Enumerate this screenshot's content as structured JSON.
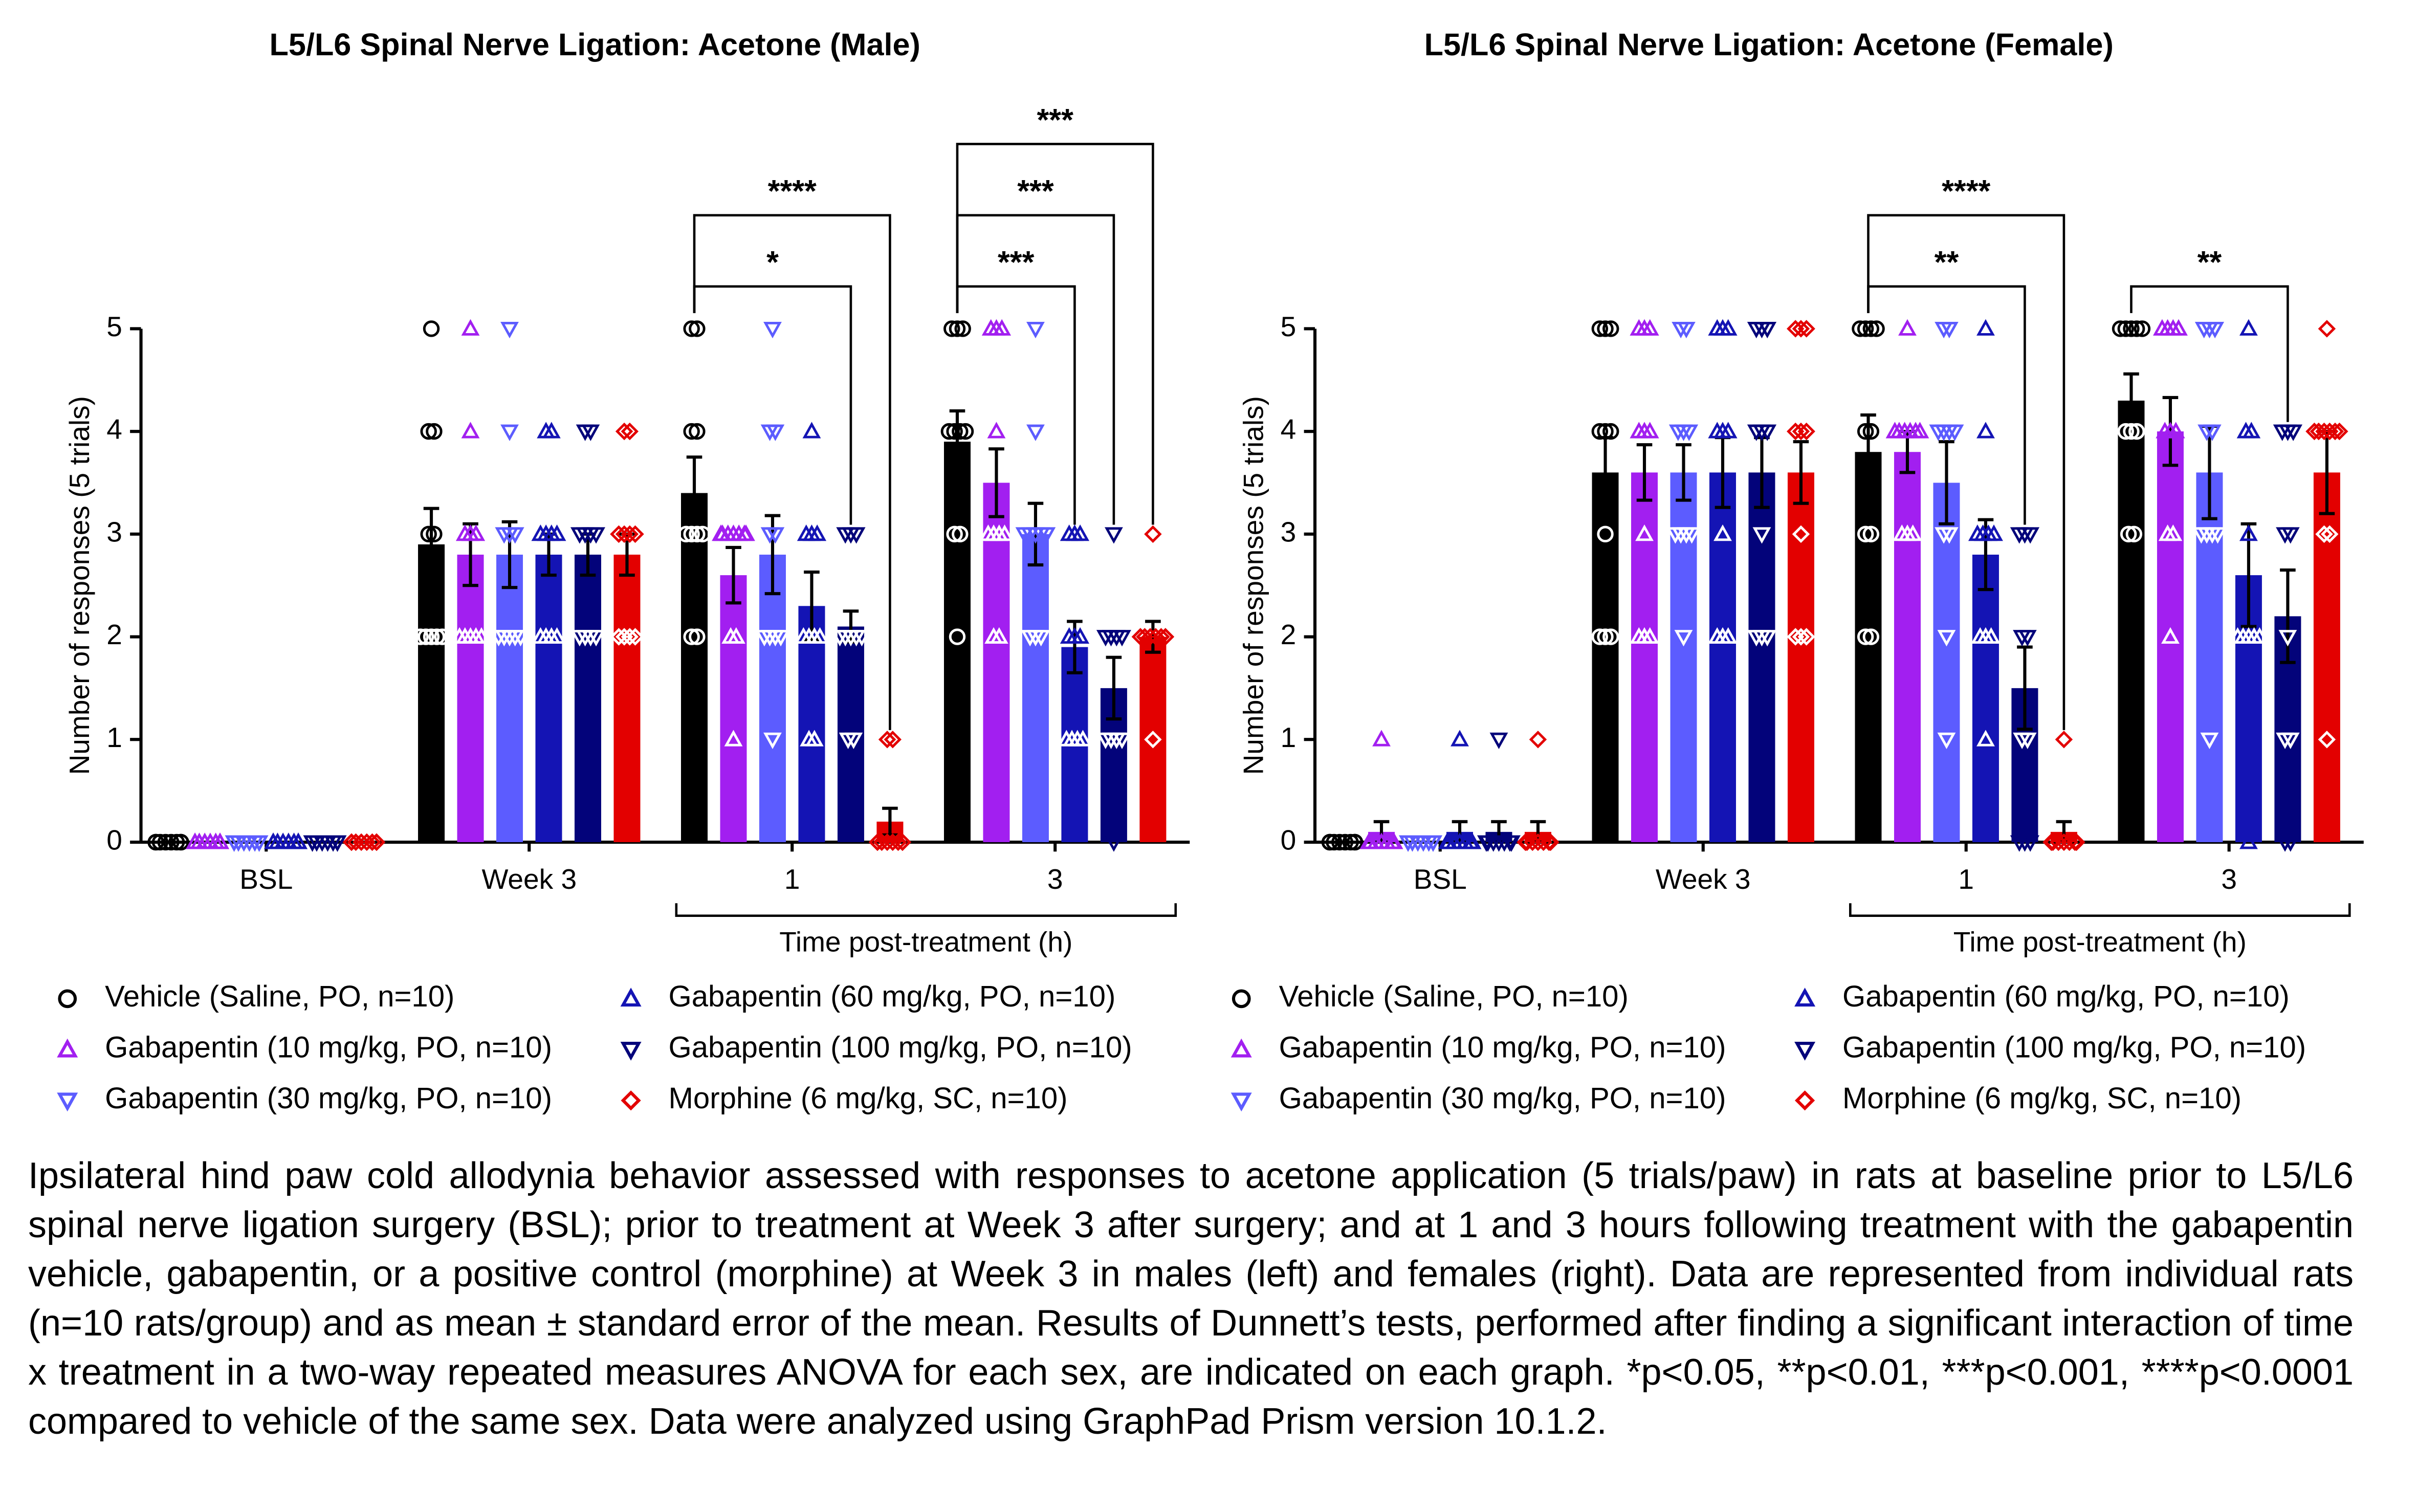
{
  "chart_data": [
    {
      "type": "bar",
      "title": "L5/L6 Spinal Nerve Ligation: Acetone (Male)",
      "y_label": "Number of responses (5 trials)",
      "categories": [
        "BSL",
        "Week 3",
        "1",
        "3"
      ],
      "x_group": {
        "label": "Time post-treatment (h)",
        "from": "1",
        "to": "3"
      },
      "ylim": [
        0,
        5
      ],
      "yticks": [
        0,
        1,
        2,
        3,
        4,
        5
      ],
      "series": [
        {
          "name": "Vehicle (Saline, PO, n=10)",
          "color": "#000000",
          "marker": "circle",
          "values": [
            0,
            2.9,
            3.4,
            3.9
          ],
          "errors": [
            0,
            0.35,
            0.35,
            0.3
          ],
          "points": [
            [
              0,
              0,
              0,
              0,
              0,
              0,
              0,
              0,
              0,
              0
            ],
            [
              5,
              4,
              4,
              3,
              3,
              2,
              2,
              2,
              2,
              2
            ],
            [
              5,
              5,
              4,
              4,
              3,
              3,
              3,
              3,
              2,
              2
            ],
            [
              5,
              5,
              5,
              4,
              4,
              4,
              4,
              3,
              3,
              2
            ]
          ]
        },
        {
          "name": "Gabapentin (10 mg/kg, PO, n=10)",
          "color": "#a21ff0",
          "marker": "triangle-up",
          "values": [
            0,
            2.8,
            2.6,
            3.5
          ],
          "errors": [
            0,
            0.3,
            0.27,
            0.33
          ],
          "points": [
            [
              0,
              0,
              0,
              0,
              0,
              0,
              0,
              0,
              0,
              0
            ],
            [
              5,
              4,
              3,
              3,
              3,
              2,
              2,
              2,
              2,
              2
            ],
            [
              3,
              3,
              3,
              3,
              3,
              3,
              3,
              2,
              2,
              1
            ],
            [
              5,
              5,
              5,
              4,
              3,
              3,
              3,
              3,
              2,
              2
            ]
          ]
        },
        {
          "name": "Gabapentin (30 mg/kg, PO, n=10)",
          "color": "#5c5cff",
          "marker": "triangle-down",
          "values": [
            0,
            2.8,
            2.8,
            3.0
          ],
          "errors": [
            0,
            0.32,
            0.38,
            0.3
          ],
          "points": [
            [
              0,
              0,
              0,
              0,
              0,
              0,
              0,
              0,
              0,
              0
            ],
            [
              5,
              4,
              3,
              3,
              3,
              2,
              2,
              2,
              2,
              2
            ],
            [
              5,
              4,
              4,
              3,
              3,
              2,
              2,
              2,
              2,
              1
            ],
            [
              5,
              4,
              3,
              3,
              3,
              3,
              3,
              2,
              2,
              2
            ]
          ]
        },
        {
          "name": "Gabapentin (60 mg/kg, PO, n=10)",
          "color": "#1414b4",
          "marker": "triangle-up",
          "values": [
            0,
            2.8,
            2.3,
            1.9
          ],
          "errors": [
            0,
            0.2,
            0.33,
            0.25
          ],
          "points": [
            [
              0,
              0,
              0,
              0,
              0,
              0,
              0,
              0,
              0,
              0
            ],
            [
              4,
              4,
              3,
              3,
              3,
              3,
              2,
              2,
              2,
              2
            ],
            [
              4,
              3,
              3,
              3,
              2,
              2,
              2,
              2,
              1,
              1
            ],
            [
              3,
              3,
              3,
              2,
              2,
              2,
              1,
              1,
              1,
              1
            ]
          ]
        },
        {
          "name": "Gabapentin (100 mg/kg, PO, n=10)",
          "color": "#03037a",
          "marker": "triangle-down",
          "values": [
            0,
            2.8,
            2.1,
            1.5
          ],
          "errors": [
            0,
            0.2,
            0.15,
            0.3
          ],
          "points": [
            [
              0,
              0,
              0,
              0,
              0,
              0,
              0,
              0,
              0,
              0
            ],
            [
              4,
              4,
              3,
              3,
              3,
              3,
              2,
              2,
              2,
              2
            ],
            [
              3,
              3,
              3,
              2,
              2,
              2,
              2,
              2,
              1,
              1
            ],
            [
              3,
              2,
              2,
              2,
              2,
              1,
              1,
              1,
              1,
              0
            ]
          ]
        },
        {
          "name": "Morphine (6 mg/kg, SC, n=10)",
          "color": "#e30000",
          "marker": "diamond",
          "values": [
            0,
            2.8,
            0.2,
            2.0
          ],
          "errors": [
            0,
            0.2,
            0.13,
            0.15
          ],
          "points": [
            [
              0,
              0,
              0,
              0,
              0,
              0,
              0,
              0,
              0,
              0
            ],
            [
              4,
              4,
              3,
              3,
              3,
              3,
              2,
              2,
              2,
              2
            ],
            [
              1,
              1,
              0,
              0,
              0,
              0,
              0,
              0,
              0,
              0
            ],
            [
              3,
              2,
              2,
              2,
              2,
              2,
              2,
              2,
              2,
              1
            ]
          ]
        }
      ],
      "annotations": [
        {
          "text": "*",
          "category": "1",
          "series": "Gabapentin (100 mg/kg, PO, n=10)"
        },
        {
          "text": "****",
          "category": "1",
          "series": "Morphine (6 mg/kg, SC, n=10)"
        },
        {
          "text": "***",
          "category": "3",
          "series": "Gabapentin (60 mg/kg, PO, n=10)"
        },
        {
          "text": "***",
          "category": "3",
          "series": "Gabapentin (100 mg/kg, PO, n=10)"
        },
        {
          "text": "***",
          "category": "3",
          "series": "Morphine (6 mg/kg, SC, n=10)"
        }
      ]
    },
    {
      "type": "bar",
      "title": "L5/L6 Spinal Nerve Ligation: Acetone (Female)",
      "y_label": "Number of responses (5 trials)",
      "categories": [
        "BSL",
        "Week 3",
        "1",
        "3"
      ],
      "x_group": {
        "label": "Time post-treatment (h)",
        "from": "1",
        "to": "3"
      },
      "ylim": [
        0,
        5
      ],
      "yticks": [
        0,
        1,
        2,
        3,
        4,
        5
      ],
      "series": [
        {
          "name": "Vehicle (Saline, PO, n=10)",
          "color": "#000000",
          "marker": "circle",
          "values": [
            0,
            3.6,
            3.8,
            4.3
          ],
          "errors": [
            0,
            0.34,
            0.36,
            0.26
          ],
          "points": [
            [
              0,
              0,
              0,
              0,
              0,
              0,
              0,
              0,
              0,
              0
            ],
            [
              5,
              5,
              5,
              4,
              4,
              4,
              3,
              2,
              2,
              2
            ],
            [
              5,
              5,
              5,
              5,
              4,
              4,
              3,
              3,
              2,
              2
            ],
            [
              5,
              5,
              5,
              5,
              5,
              4,
              4,
              4,
              3,
              3
            ]
          ]
        },
        {
          "name": "Gabapentin (10 mg/kg, PO, n=10)",
          "color": "#a21ff0",
          "marker": "triangle-up",
          "values": [
            0.1,
            3.6,
            3.8,
            4.0
          ],
          "errors": [
            0.1,
            0.27,
            0.2,
            0.33
          ],
          "points": [
            [
              1,
              0,
              0,
              0,
              0,
              0,
              0,
              0,
              0,
              0
            ],
            [
              5,
              5,
              5,
              4,
              4,
              4,
              3,
              2,
              2,
              2
            ],
            [
              5,
              4,
              4,
              4,
              4,
              4,
              4,
              3,
              3,
              3
            ],
            [
              5,
              5,
              5,
              5,
              4,
              4,
              4,
              3,
              3,
              2
            ]
          ]
        },
        {
          "name": "Gabapentin (30 mg/kg, PO, n=10)",
          "color": "#5c5cff",
          "marker": "triangle-down",
          "values": [
            0,
            3.6,
            3.5,
            3.6
          ],
          "errors": [
            0,
            0.27,
            0.4,
            0.45
          ],
          "points": [
            [
              0,
              0,
              0,
              0,
              0,
              0,
              0,
              0,
              0,
              0
            ],
            [
              5,
              5,
              4,
              4,
              4,
              3,
              3,
              3,
              3,
              2
            ],
            [
              5,
              5,
              4,
              4,
              4,
              4,
              3,
              3,
              2,
              1
            ],
            [
              5,
              5,
              5,
              4,
              4,
              3,
              3,
              3,
              3,
              1
            ]
          ]
        },
        {
          "name": "Gabapentin (60 mg/kg, PO, n=10)",
          "color": "#1414b4",
          "marker": "triangle-up",
          "values": [
            0.1,
            3.6,
            2.8,
            2.6
          ],
          "errors": [
            0.1,
            0.34,
            0.34,
            0.5
          ],
          "points": [
            [
              1,
              0,
              0,
              0,
              0,
              0,
              0,
              0,
              0,
              0
            ],
            [
              5,
              5,
              5,
              4,
              4,
              4,
              3,
              2,
              2,
              2
            ],
            [
              5,
              4,
              3,
              3,
              3,
              3,
              2,
              2,
              2,
              1
            ],
            [
              5,
              4,
              4,
              3,
              2,
              2,
              2,
              2,
              2,
              0
            ]
          ]
        },
        {
          "name": "Gabapentin (100 mg/kg, PO, n=10)",
          "color": "#03037a",
          "marker": "triangle-down",
          "values": [
            0.1,
            3.6,
            1.5,
            2.2
          ],
          "errors": [
            0.1,
            0.34,
            0.4,
            0.45
          ],
          "points": [
            [
              1,
              0,
              0,
              0,
              0,
              0,
              0,
              0,
              0,
              0
            ],
            [
              5,
              5,
              5,
              4,
              4,
              4,
              3,
              2,
              2,
              2
            ],
            [
              3,
              3,
              3,
              2,
              2,
              1,
              1,
              0,
              0,
              0
            ],
            [
              4,
              4,
              4,
              3,
              3,
              2,
              1,
              1,
              0,
              0
            ]
          ]
        },
        {
          "name": "Morphine (6 mg/kg, SC, n=10)",
          "color": "#e30000",
          "marker": "diamond",
          "values": [
            0.1,
            3.6,
            0.1,
            3.6
          ],
          "errors": [
            0.1,
            0.3,
            0.1,
            0.4
          ],
          "points": [
            [
              1,
              0,
              0,
              0,
              0,
              0,
              0,
              0,
              0,
              0
            ],
            [
              5,
              5,
              5,
              4,
              4,
              4,
              3,
              2,
              2,
              2
            ],
            [
              1,
              0,
              0,
              0,
              0,
              0,
              0,
              0,
              0,
              0
            ],
            [
              5,
              4,
              4,
              4,
              4,
              4,
              4,
              3,
              3,
              1
            ]
          ]
        }
      ],
      "annotations": [
        {
          "text": "**",
          "category": "1",
          "series": "Gabapentin (100 mg/kg, PO, n=10)"
        },
        {
          "text": "****",
          "category": "1",
          "series": "Morphine (6 mg/kg, SC, n=10)"
        },
        {
          "text": "**",
          "category": "3",
          "series": "Gabapentin (100 mg/kg, PO, n=10)"
        }
      ]
    }
  ],
  "caption": "Ipsilateral hind paw cold allodynia behavior assessed with responses to acetone application (5 trials/paw) in rats at baseline prior to L5/L6 spinal nerve ligation surgery (BSL); prior to treatment at Week 3 after surgery; and at 1 and 3 hours following treatment with the gabapentin vehicle, gabapentin, or a positive control (morphine) at Week 3 in males (left) and females (right). Data are represented from individual rats (n=10 rats/group) and as mean ± standard error of the mean. Results of Dunnett’s tests, performed after finding a significant interaction of time x treatment in a two-way repeated measures ANOVA for each sex, are indicated on each graph. *p<0.05, **p<0.01, ***p<0.001, ****p<0.0001 compared to vehicle of the same sex. Data were analyzed using GraphPad Prism version 10.1.2."
}
